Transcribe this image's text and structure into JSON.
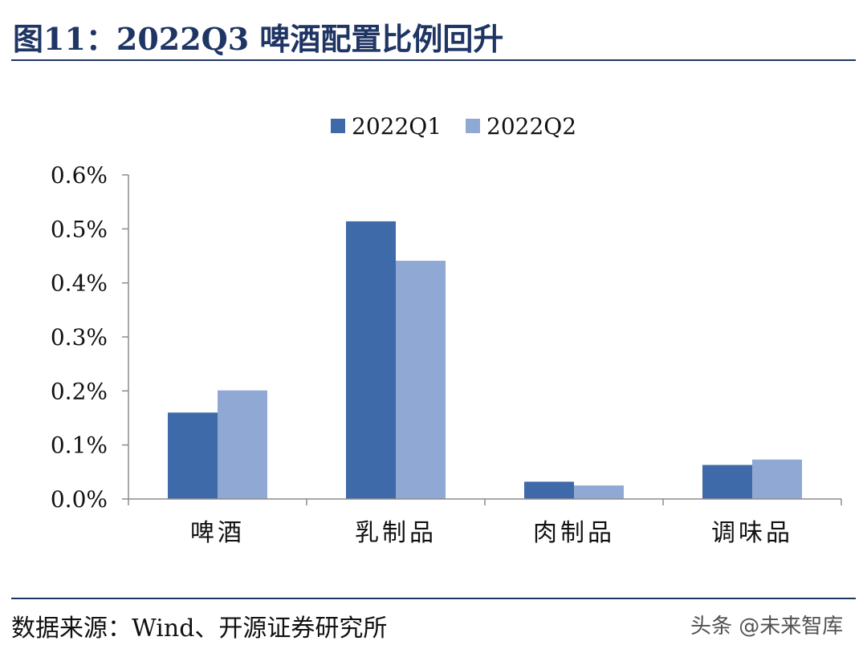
{
  "figure": {
    "title": "图11：2022Q3 啤酒配置比例回升",
    "source": "数据来源：Wind、开源证券研究所",
    "watermark": "头条 @未来智库"
  },
  "chart_data": {
    "type": "bar",
    "categories": [
      "啤酒",
      "乳制品",
      "肉制品",
      "调味品"
    ],
    "series": [
      {
        "name": "2022Q1",
        "values": [
          0.16,
          0.514,
          0.032,
          0.063
        ],
        "color": "#3e6aa9"
      },
      {
        "name": "2022Q2",
        "values": [
          0.201,
          0.441,
          0.025,
          0.073
        ],
        "color": "#8fa9d4"
      }
    ],
    "ylim": [
      0,
      0.6
    ],
    "yticks": [
      0.0,
      0.1,
      0.2,
      0.3,
      0.4,
      0.5,
      0.6
    ],
    "ytick_labels": [
      "0.0%",
      "0.1%",
      "0.2%",
      "0.3%",
      "0.4%",
      "0.5%",
      "0.6%"
    ],
    "xlabel": "",
    "ylabel": "",
    "legend_position": "top-center",
    "grid": false
  }
}
